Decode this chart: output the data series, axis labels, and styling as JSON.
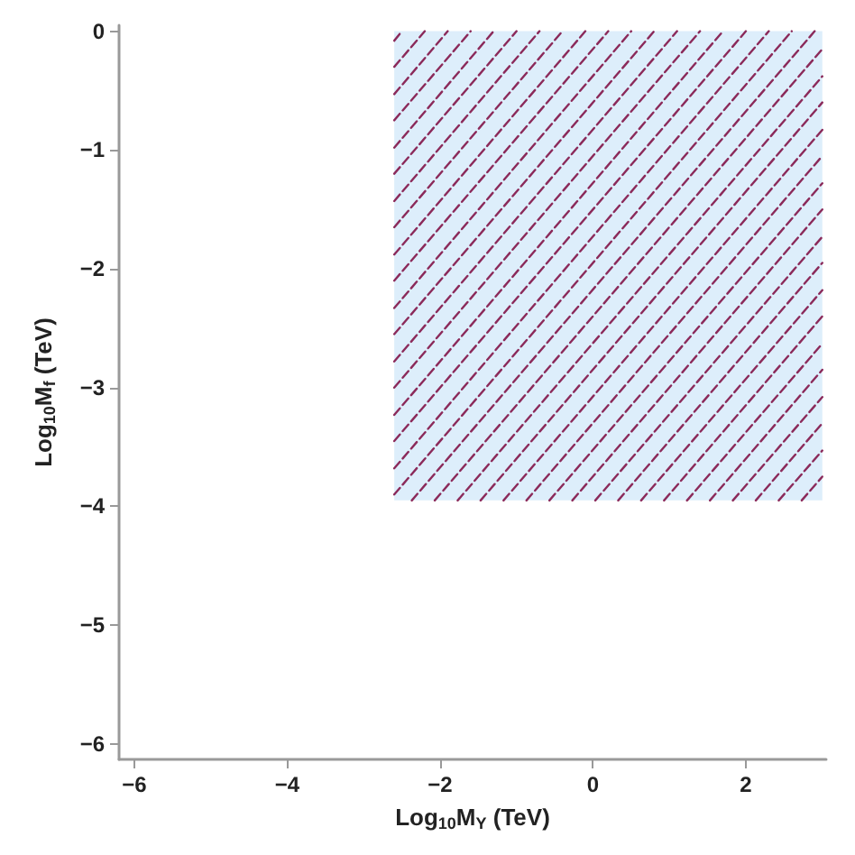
{
  "chart_data": {
    "type": "line",
    "xlabel": "Log$_{10}$M$_{Y}$ (TeV)",
    "ylabel": "Log$_{10}$M$_{f}$ (TeV)",
    "xlim": [
      -6.2,
      3.05
    ],
    "ylim": [
      -6.13,
      0.05
    ],
    "xticks": [
      -6,
      -4,
      -2,
      0,
      2
    ],
    "yticks": [
      0,
      -1,
      -2,
      -3,
      -4,
      -5,
      -6
    ],
    "grid": false,
    "marker": "none",
    "line_style": "dashed",
    "series": [
      {
        "color": "#ddeefb",
        "x": [
          -2.6,
          3
        ],
        "values": [
          null,
          null
        ],
        "lower": [
          -3.95,
          -3.95
        ],
        "upper": [
          0,
          0
        ]
      },
      {
        "color": "#8b2a5a",
        "x": [
          -2.6,
          -2.5
        ],
        "values": [
          -0.08,
          0
        ]
      },
      {
        "color": "#8b2a5a",
        "x": [
          -2.6,
          -2.2
        ],
        "values": [
          -0.3,
          0
        ]
      },
      {
        "color": "#8b2a5a",
        "x": [
          -2.6,
          -1.9
        ],
        "values": [
          -0.53,
          0
        ]
      },
      {
        "color": "#8b2a5a",
        "x": [
          -2.6,
          -1.6
        ],
        "values": [
          -0.75,
          0
        ]
      },
      {
        "color": "#8b2a5a",
        "x": [
          -2.6,
          -1.3
        ],
        "values": [
          -0.98,
          0
        ]
      },
      {
        "color": "#8b2a5a",
        "x": [
          -2.6,
          -1.0
        ],
        "values": [
          -1.2,
          0
        ]
      },
      {
        "color": "#8b2a5a",
        "x": [
          -2.6,
          -0.7
        ],
        "values": [
          -1.43,
          0
        ]
      },
      {
        "color": "#8b2a5a",
        "x": [
          -2.6,
          -0.4
        ],
        "values": [
          -1.65,
          0
        ]
      },
      {
        "color": "#8b2a5a",
        "x": [
          -2.6,
          -0.1
        ],
        "values": [
          -1.88,
          0
        ]
      },
      {
        "color": "#8b2a5a",
        "x": [
          -2.6,
          0.2
        ],
        "values": [
          -2.1,
          0
        ]
      },
      {
        "color": "#8b2a5a",
        "x": [
          -2.6,
          0.5
        ],
        "values": [
          -2.33,
          0
        ]
      },
      {
        "color": "#8b2a5a",
        "x": [
          -2.6,
          0.8
        ],
        "values": [
          -2.55,
          0
        ]
      },
      {
        "color": "#8b2a5a",
        "x": [
          -2.6,
          1.1
        ],
        "values": [
          -2.78,
          0
        ]
      },
      {
        "color": "#8b2a5a",
        "x": [
          -2.6,
          1.4
        ],
        "values": [
          -3.0,
          0
        ]
      },
      {
        "color": "#8b2a5a",
        "x": [
          -2.6,
          1.7
        ],
        "values": [
          -3.23,
          0
        ]
      },
      {
        "color": "#8b2a5a",
        "x": [
          -2.6,
          2.0
        ],
        "values": [
          -3.45,
          0
        ]
      },
      {
        "color": "#8b2a5a",
        "x": [
          -2.6,
          2.3
        ],
        "values": [
          -3.68,
          0
        ]
      },
      {
        "color": "#8b2a5a",
        "x": [
          -2.6,
          2.6
        ],
        "values": [
          -3.9,
          0
        ]
      },
      {
        "color": "#8b2a5a",
        "x": [
          -2.37,
          2.9
        ],
        "values": [
          -3.95,
          0
        ]
      },
      {
        "color": "#8b2a5a",
        "x": [
          -2.07,
          3
        ],
        "values": [
          -3.95,
          -0.15
        ]
      },
      {
        "color": "#8b2a5a",
        "x": [
          -1.77,
          3
        ],
        "values": [
          -3.95,
          -0.38
        ]
      },
      {
        "color": "#8b2a5a",
        "x": [
          -1.47,
          3
        ],
        "values": [
          -3.95,
          -0.6
        ]
      },
      {
        "color": "#8b2a5a",
        "x": [
          -1.17,
          3
        ],
        "values": [
          -3.95,
          -0.83
        ]
      },
      {
        "color": "#8b2a5a",
        "x": [
          -0.87,
          3
        ],
        "values": [
          -3.95,
          -1.05
        ]
      },
      {
        "color": "#8b2a5a",
        "x": [
          -0.57,
          3
        ],
        "values": [
          -3.95,
          -1.28
        ]
      },
      {
        "color": "#8b2a5a",
        "x": [
          -0.27,
          3
        ],
        "values": [
          -3.95,
          -1.5
        ]
      },
      {
        "color": "#8b2a5a",
        "x": [
          0.03,
          3
        ],
        "values": [
          -3.95,
          -1.73
        ]
      },
      {
        "color": "#8b2a5a",
        "x": [
          0.33,
          3
        ],
        "values": [
          -3.95,
          -1.95
        ]
      },
      {
        "color": "#8b2a5a",
        "x": [
          0.63,
          3
        ],
        "values": [
          -3.95,
          -2.18
        ]
      },
      {
        "color": "#8b2a5a",
        "x": [
          0.93,
          3
        ],
        "values": [
          -3.95,
          -2.4
        ]
      },
      {
        "color": "#8b2a5a",
        "x": [
          1.23,
          3
        ],
        "values": [
          -3.95,
          -2.63
        ]
      },
      {
        "color": "#8b2a5a",
        "x": [
          1.53,
          3
        ],
        "values": [
          -3.95,
          -2.85
        ]
      },
      {
        "color": "#8b2a5a",
        "x": [
          1.83,
          3
        ],
        "values": [
          -3.95,
          -3.08
        ]
      },
      {
        "color": "#8b2a5a",
        "x": [
          2.13,
          3
        ],
        "values": [
          -3.95,
          -3.3
        ]
      },
      {
        "color": "#8b2a5a",
        "x": [
          2.43,
          3
        ],
        "values": [
          -3.95,
          -3.53
        ]
      },
      {
        "color": "#8b2a5a",
        "x": [
          2.73,
          3
        ],
        "values": [
          -3.95,
          -3.75
        ]
      }
    ]
  }
}
